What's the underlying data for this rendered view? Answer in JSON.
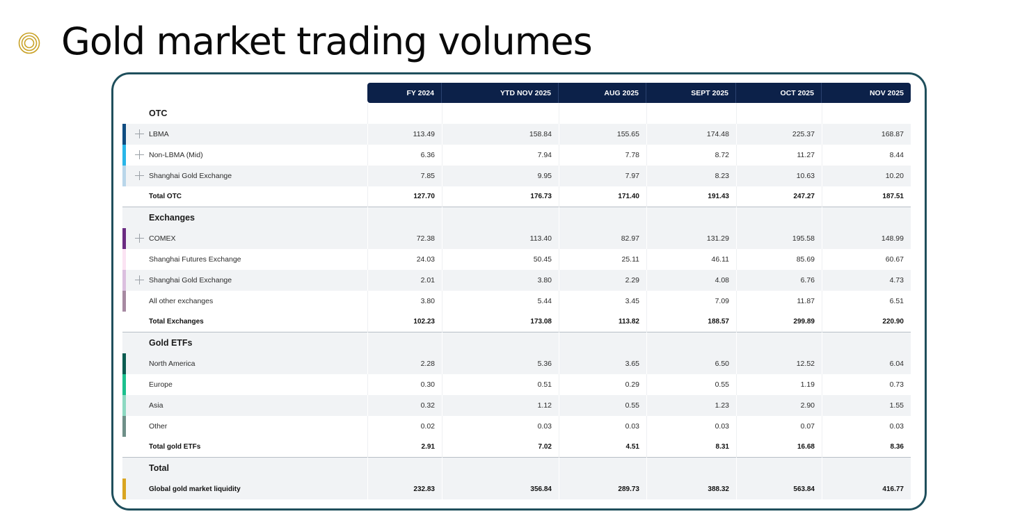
{
  "title": "Gold market trading volumes",
  "colors": {
    "header_bg": "#0c2149",
    "panel_border": "#1f4f5c",
    "title_icon": "#c9a227"
  },
  "columns": [
    "FY 2024",
    "YTD NOV 2025",
    "AUG 2025",
    "SEPT 2025",
    "OCT 2025",
    "NOV 2025"
  ],
  "sections": [
    {
      "name": "OTC",
      "rows": [
        {
          "label": "LBMA",
          "values": [
            "113.49",
            "158.84",
            "155.65",
            "174.48",
            "225.37",
            "168.87"
          ],
          "color": "#0f4c81",
          "expand": true
        },
        {
          "label": "Non-LBMA (Mid)",
          "values": [
            "6.36",
            "7.94",
            "7.78",
            "8.72",
            "11.27",
            "8.44"
          ],
          "color": "#29b6e8",
          "expand": true
        },
        {
          "label": "Shanghai Gold Exchange",
          "values": [
            "7.85",
            "9.95",
            "7.97",
            "8.23",
            "10.63",
            "10.20"
          ],
          "color": "#b9d6ea",
          "expand": true
        }
      ],
      "total": {
        "label": "Total OTC",
        "values": [
          "127.70",
          "176.73",
          "171.40",
          "191.43",
          "247.27",
          "187.51"
        ]
      }
    },
    {
      "name": "Exchanges",
      "rows": [
        {
          "label": "COMEX",
          "values": [
            "72.38",
            "113.40",
            "82.97",
            "131.29",
            "195.58",
            "148.99"
          ],
          "color": "#6b2c82",
          "expand": true
        },
        {
          "label": "Shanghai Futures Exchange",
          "values": [
            "24.03",
            "50.45",
            "25.11",
            "46.11",
            "85.69",
            "60.67"
          ],
          "color": "#fbe3f3",
          "expand": false
        },
        {
          "label": "Shanghai Gold Exchange",
          "values": [
            "2.01",
            "3.80",
            "2.29",
            "4.08",
            "6.76",
            "4.73"
          ],
          "color": "#dbbfdf",
          "expand": true
        },
        {
          "label": "All other exchanges",
          "values": [
            "3.80",
            "5.44",
            "3.45",
            "7.09",
            "11.87",
            "6.51"
          ],
          "color": "#a78aa2",
          "expand": false
        }
      ],
      "total": {
        "label": "Total Exchanges",
        "values": [
          "102.23",
          "173.08",
          "113.82",
          "188.57",
          "299.89",
          "220.90"
        ]
      }
    },
    {
      "name": "Gold ETFs",
      "rows": [
        {
          "label": "North America",
          "values": [
            "2.28",
            "5.36",
            "3.65",
            "6.50",
            "12.52",
            "6.04"
          ],
          "color": "#0a5b50",
          "expand": false
        },
        {
          "label": "Europe",
          "values": [
            "0.30",
            "0.51",
            "0.29",
            "0.55",
            "1.19",
            "0.73"
          ],
          "color": "#1cc08e",
          "expand": false
        },
        {
          "label": "Asia",
          "values": [
            "0.32",
            "1.12",
            "0.55",
            "1.23",
            "2.90",
            "1.55"
          ],
          "color": "#8dd9c2",
          "expand": false
        },
        {
          "label": "Other",
          "values": [
            "0.02",
            "0.03",
            "0.03",
            "0.03",
            "0.07",
            "0.03"
          ],
          "color": "#6f9089",
          "expand": false
        }
      ],
      "total": {
        "label": "Total gold ETFs",
        "values": [
          "2.91",
          "7.02",
          "4.51",
          "8.31",
          "16.68",
          "8.36"
        ]
      }
    },
    {
      "name": "Total",
      "rows": [
        {
          "label": "Global gold market liquidity",
          "values": [
            "232.83",
            "356.84",
            "289.73",
            "388.32",
            "563.84",
            "416.77"
          ],
          "color": "#d9a521",
          "expand": false,
          "bold": true
        }
      ]
    }
  ]
}
